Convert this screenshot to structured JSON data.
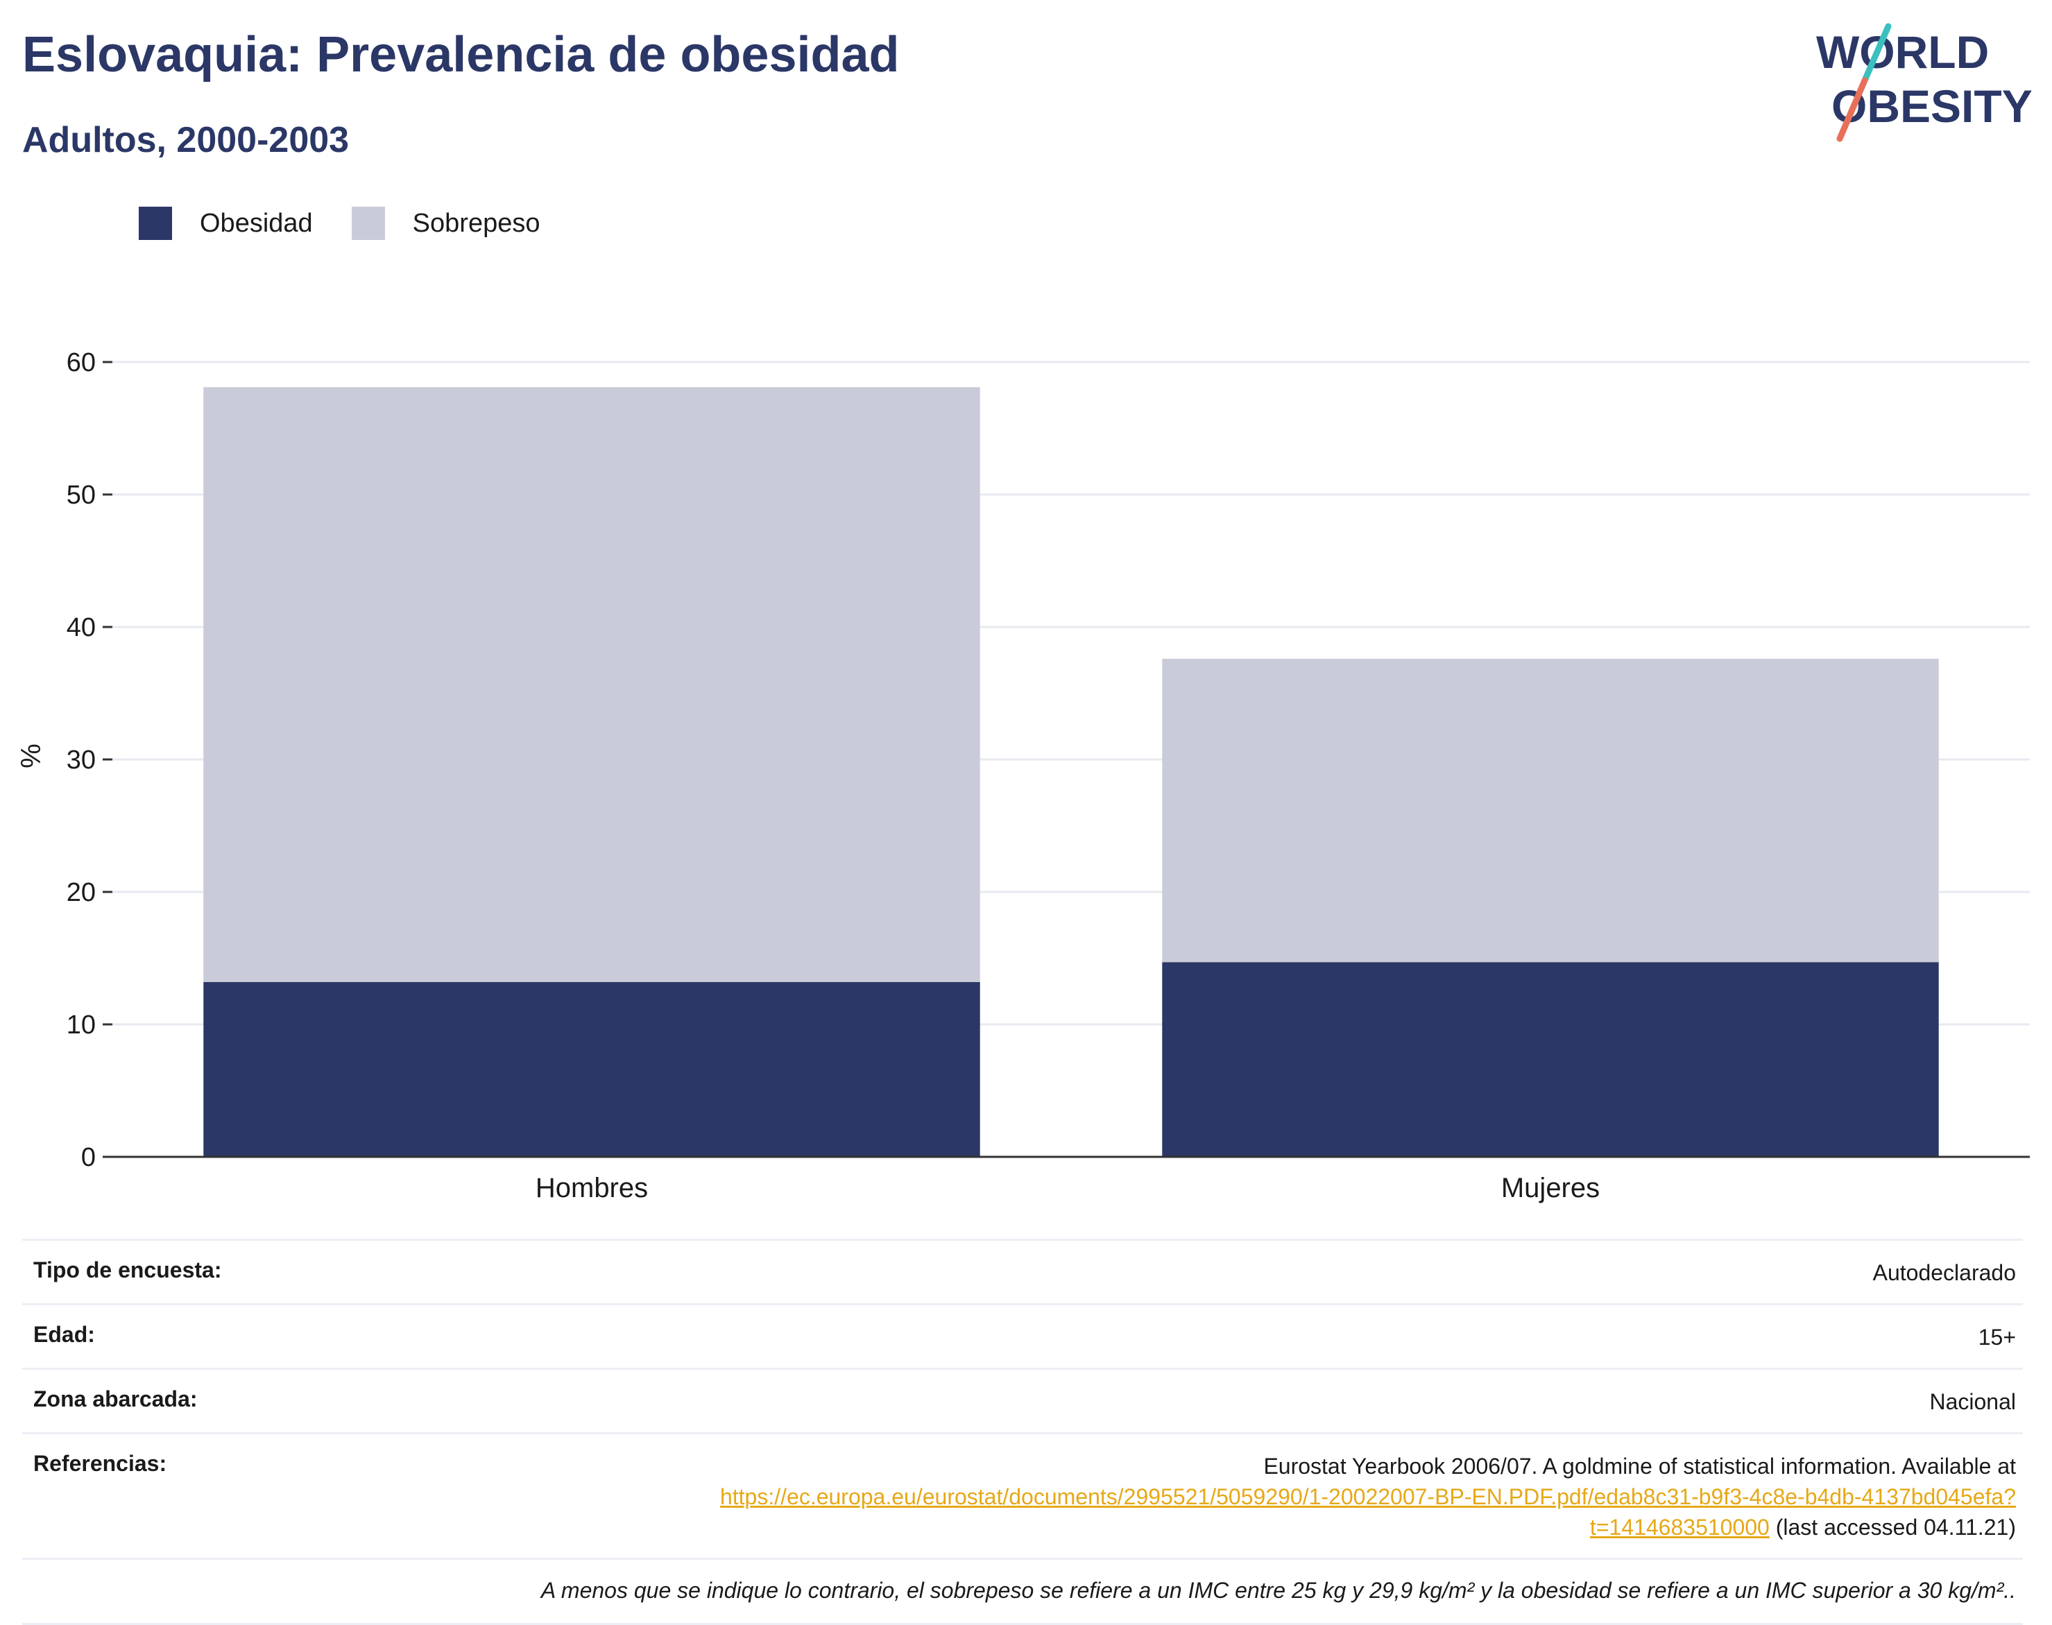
{
  "header": {
    "title": "Eslovaquia: Prevalencia de obesidad",
    "subtitle": "Adultos, 2000-2003"
  },
  "logo": {
    "line1": "WORLD",
    "line2": "OBESITY",
    "colors": {
      "text": "#2b3766",
      "teal": "#3bbfbf",
      "coral": "#e8705a"
    }
  },
  "colors": {
    "obesidad": "#2b3766",
    "sobrepeso": "#c9ccd8",
    "grid": "#e8eaf0",
    "axis": "#333333"
  },
  "chart_data": {
    "type": "bar",
    "stacked": true,
    "categories": [
      "Hombres",
      "Mujeres"
    ],
    "series": [
      {
        "name": "Obesidad",
        "values": [
          13.2,
          14.7
        ]
      },
      {
        "name": "Sobrepeso",
        "values": [
          44.9,
          22.9
        ]
      }
    ],
    "ylabel": "%",
    "ylim": [
      0,
      60
    ],
    "yticks": [
      0,
      10,
      20,
      30,
      40,
      50,
      60
    ],
    "grid": true,
    "legend_position": "top-left"
  },
  "info": {
    "survey_label": "Tipo de encuesta:",
    "survey_value": "Autodeclarado",
    "age_label": "Edad:",
    "age_value": "15+",
    "area_label": "Zona abarcada:",
    "area_value": "Nacional",
    "refs_label": "Referencias:",
    "refs_text": "Eurostat Yearbook 2006/07. A goldmine of statistical information. Available at",
    "refs_link": "https://ec.europa.eu/eurostat/documents/2995521/5059290/1-20022007-BP-EN.PDF.pdf/edab8c31-b9f3-4c8e-b4db-4137bd045efa?t=1414683510000",
    "refs_suffix": "(last accessed 04.11.21)",
    "note": "A menos que se indique lo contrario, el sobrepeso se refiere a un IMC entre 25 kg y 29,9 kg/m² y la obesidad se refiere a un IMC superior a 30 kg/m².."
  }
}
